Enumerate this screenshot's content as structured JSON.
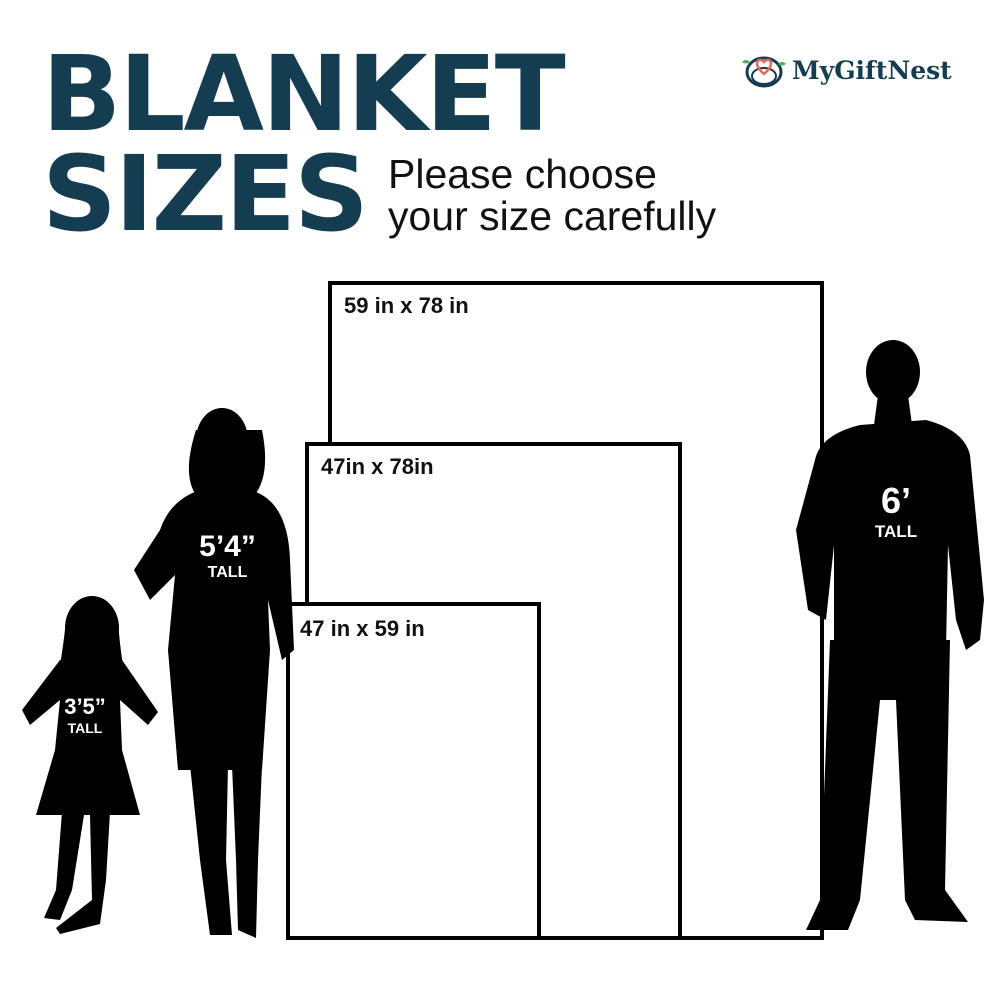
{
  "title": {
    "line1": "BLANKET",
    "line2": "SIZES"
  },
  "subtitle": {
    "line1": "Please choose",
    "line2": "your size carefully"
  },
  "logo": {
    "text": "MyGiftNest",
    "icon": "heart-nest-icon",
    "colors": {
      "text": "#143d52",
      "heart": "#e8665a",
      "leaf": "#4caf50"
    }
  },
  "sizes": [
    {
      "label": "59 in x 78 in"
    },
    {
      "label": "47in x 78in"
    },
    {
      "label": "47 in x 59 in"
    }
  ],
  "figures": [
    {
      "name": "girl",
      "height": "3’5”",
      "tall": "TALL"
    },
    {
      "name": "woman",
      "height": "5’4”",
      "tall": "TALL"
    },
    {
      "name": "man",
      "height": "6’",
      "tall": "TALL"
    }
  ],
  "colors": {
    "title": "#143d52",
    "silhouette": "#000000"
  }
}
